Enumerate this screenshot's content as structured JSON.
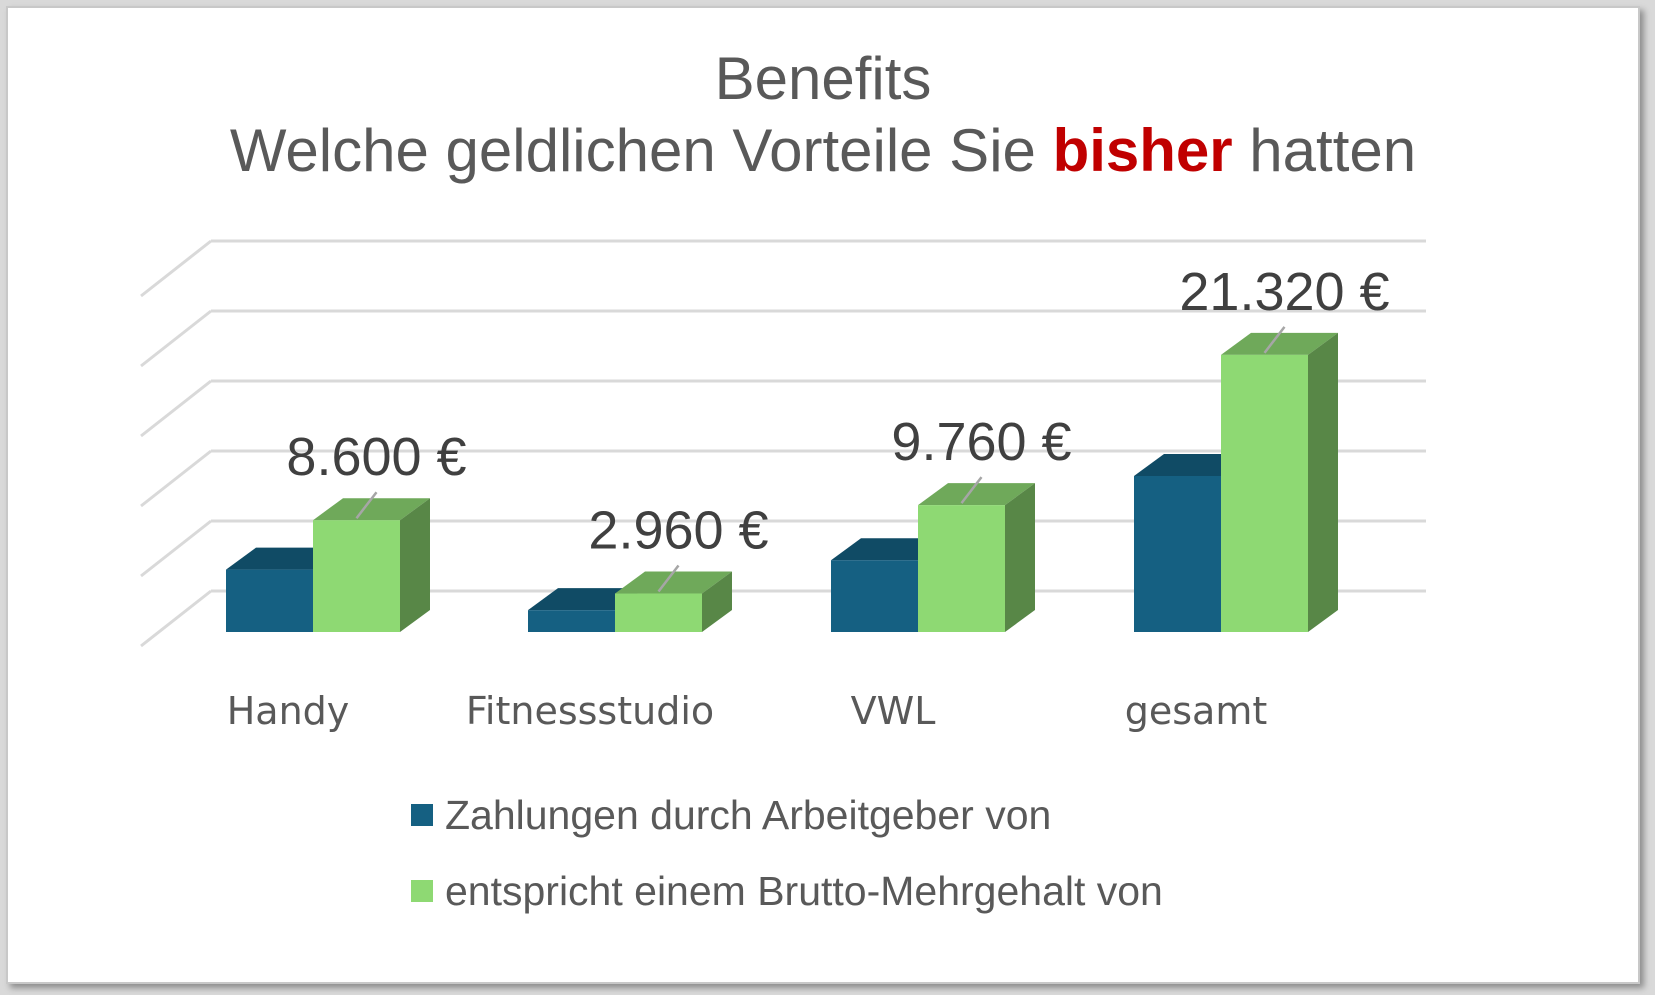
{
  "chart_data": {
    "type": "bar",
    "title_line1": "Benefits",
    "title_line2_before": "Welche geldlichen Vorteile Sie ",
    "title_line2_highlight": "bisher",
    "title_line2_after": " hatten",
    "categories": [
      "Handy",
      "Fitnessstudio",
      "VWL",
      "gesamt"
    ],
    "series": [
      {
        "name": "Zahlungen durch Arbeitgeber von",
        "color": "#156082",
        "values": [
          4800,
          1680,
          5520,
          12000
        ]
      },
      {
        "name": "entspricht einem Brutto-Mehrgehalt von",
        "color": "#8ed973",
        "values": [
          8600,
          2960,
          9760,
          21320
        ]
      }
    ],
    "data_labels": [
      "8.600 €",
      "2.960 €",
      "9.760 €",
      "21.320 €"
    ],
    "ylim": [
      0,
      30000
    ],
    "grid": true,
    "legend_position": "bottom",
    "highlight_color": "#c00000"
  }
}
